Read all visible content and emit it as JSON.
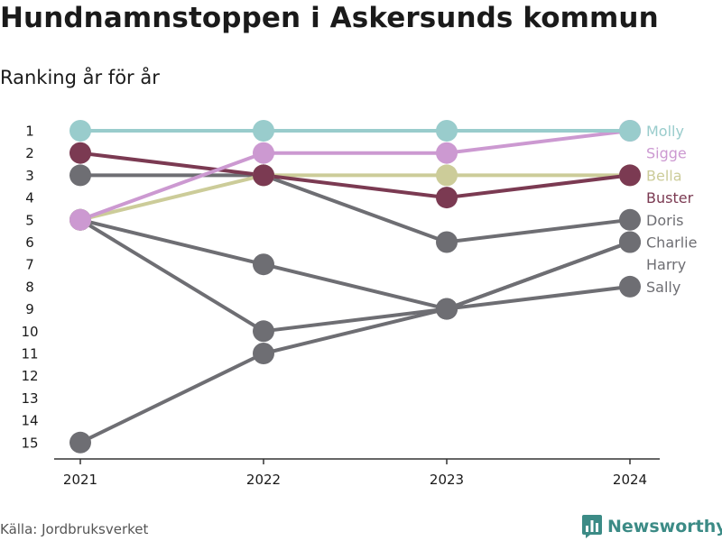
{
  "header": {
    "title": "Hundnamnstoppen i Askersunds kommun",
    "subtitle": "Ranking år för år"
  },
  "footer": {
    "source": "Källa: Jordbruksverket",
    "brand": "Newsworthy",
    "brand_icon": "bar-chart-logo-icon"
  },
  "chart_data": {
    "type": "line",
    "title": "Hundnamnstoppen i Askersunds kommun",
    "subtitle": "Ranking år för år",
    "xlabel": "",
    "ylabel": "",
    "x": [
      "2021",
      "2022",
      "2023",
      "2024"
    ],
    "y_ticks": [
      1,
      2,
      3,
      4,
      5,
      6,
      7,
      8,
      9,
      10,
      11,
      12,
      13,
      14,
      15
    ],
    "ylim": [
      15,
      1
    ],
    "y_reversed": true,
    "grid": false,
    "legend": "direct labels at right end",
    "series": [
      {
        "name": "Harry",
        "color": "#6e6e73",
        "values": [
          15,
          11,
          9,
          6
        ]
      },
      {
        "name": "Sally",
        "color": "#6e6e73",
        "values": [
          5,
          10,
          9,
          8
        ]
      },
      {
        "name": "Charlie",
        "color": "#6e6e73",
        "values": [
          5,
          7,
          9,
          6
        ]
      },
      {
        "name": "Doris",
        "color": "#6e6e73",
        "values": [
          3,
          3,
          6,
          5
        ]
      },
      {
        "name": "Bella",
        "color": "#cccc99",
        "values": [
          5,
          3,
          3,
          3
        ]
      },
      {
        "name": "Buster",
        "color": "#7b3a52",
        "values": [
          2,
          3,
          4,
          3
        ]
      },
      {
        "name": "Sigge",
        "color": "#cc99d1",
        "values": [
          5,
          2,
          2,
          1
        ]
      },
      {
        "name": "Molly",
        "color": "#99cccc",
        "values": [
          1,
          1,
          1,
          1
        ]
      }
    ],
    "end_label_order": [
      "Molly",
      "Sigge",
      "Bella",
      "Buster",
      "Doris",
      "Charlie",
      "Harry",
      "Sally"
    ]
  }
}
